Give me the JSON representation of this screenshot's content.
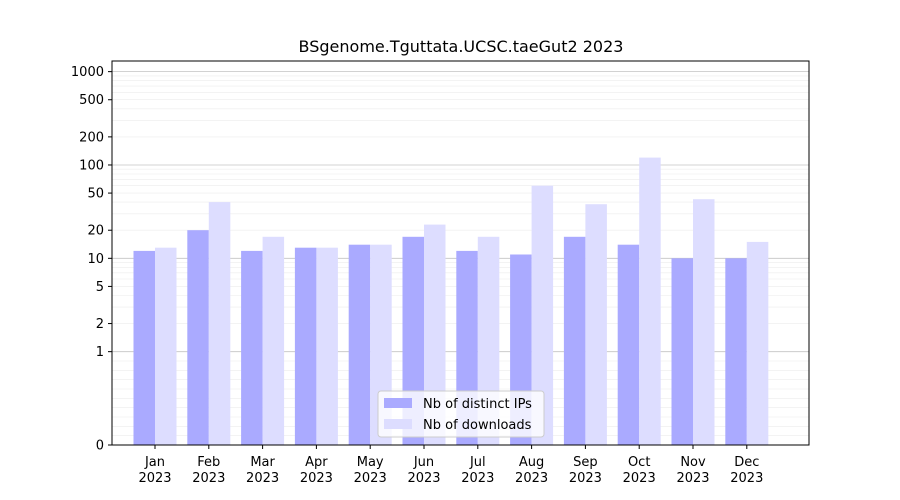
{
  "chart_data": {
    "type": "bar",
    "title": "BSgenome.Tguttata.UCSC.taeGut2 2023",
    "xlabel": "",
    "ylabel": "",
    "yscale": "symlog",
    "ylim": [
      0,
      1300
    ],
    "yticks": [
      0,
      1,
      2,
      5,
      10,
      20,
      50,
      100,
      200,
      500,
      1000
    ],
    "ytick_labels": [
      "0",
      "1",
      "2",
      "5",
      "10",
      "20",
      "50",
      "100",
      "200",
      "500",
      "1000"
    ],
    "categories": [
      [
        "Jan",
        "2023"
      ],
      [
        "Feb",
        "2023"
      ],
      [
        "Mar",
        "2023"
      ],
      [
        "Apr",
        "2023"
      ],
      [
        "May",
        "2023"
      ],
      [
        "Jun",
        "2023"
      ],
      [
        "Jul",
        "2023"
      ],
      [
        "Aug",
        "2023"
      ],
      [
        "Sep",
        "2023"
      ],
      [
        "Oct",
        "2023"
      ],
      [
        "Nov",
        "2023"
      ],
      [
        "Dec",
        "2023"
      ]
    ],
    "series": [
      {
        "name": "Nb of distinct IPs",
        "color": "#aaaaff",
        "values": [
          12,
          20,
          12,
          13,
          14,
          17,
          12,
          11,
          17,
          14,
          10,
          10
        ]
      },
      {
        "name": "Nb of downloads",
        "color": "#ddddff",
        "values": [
          13,
          40,
          17,
          13,
          14,
          23,
          17,
          60,
          38,
          120,
          43,
          15
        ]
      }
    ],
    "grid": true,
    "legend_position": "lower-center"
  }
}
